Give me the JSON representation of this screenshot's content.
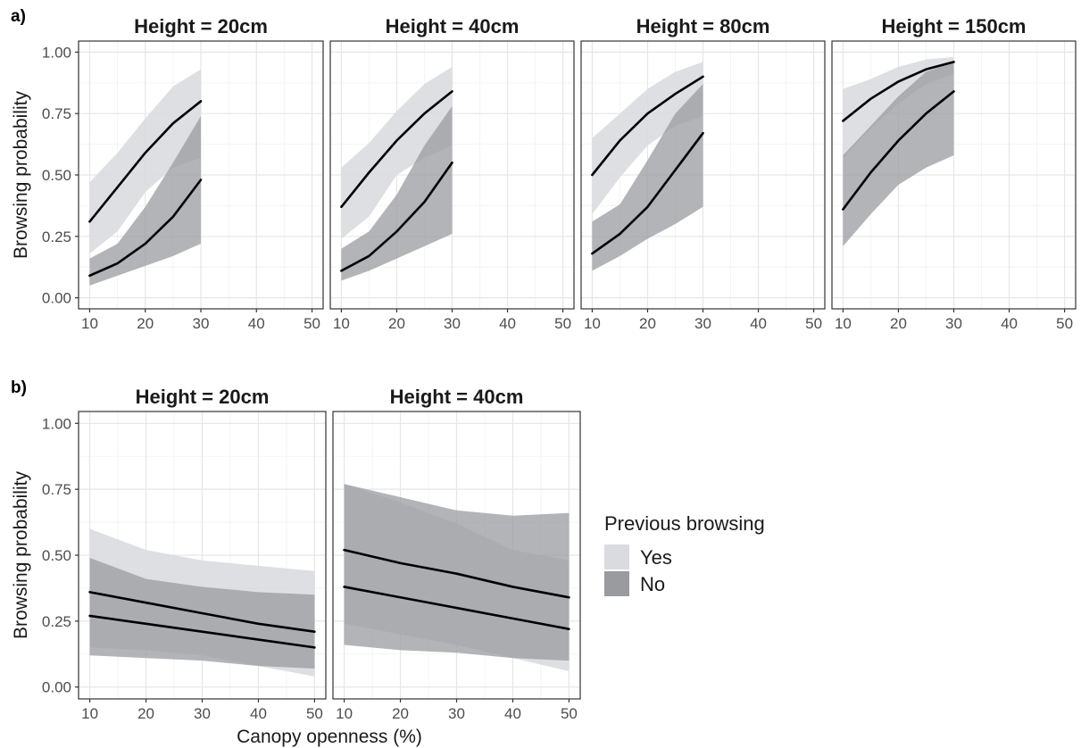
{
  "chart_data": {
    "type": "line",
    "tags": [
      "a)",
      "b)"
    ],
    "xlabel": "Canopy openness (%)",
    "ylabel": "Browsing probability",
    "xlim": [
      10,
      50
    ],
    "ylim": [
      0,
      1
    ],
    "xticks": [
      10,
      20,
      30,
      40,
      50
    ],
    "yticks": [
      0,
      0.25,
      0.5,
      0.75,
      1
    ],
    "ytick_labels": [
      "0.00",
      "0.25",
      "0.50",
      "0.75",
      "1.00"
    ],
    "grid": true,
    "legend": {
      "title": "Previous browsing",
      "placement": "right",
      "entries": [
        {
          "label": "Yes",
          "color": "#d9dbe0"
        },
        {
          "label": "No",
          "color": "#9a9b9f"
        }
      ]
    },
    "line_color": "#000000",
    "panels": [
      {
        "row": "a",
        "title": "Height = 20cm",
        "series": [
          {
            "name": "Yes",
            "x": [
              10,
              15,
              20,
              25,
              30
            ],
            "y": [
              0.31,
              0.45,
              0.59,
              0.71,
              0.8
            ],
            "lower": [
              0.18,
              0.27,
              0.43,
              0.53,
              0.57
            ],
            "upper": [
              0.47,
              0.59,
              0.73,
              0.86,
              0.93
            ]
          },
          {
            "name": "No",
            "x": [
              10,
              15,
              20,
              25,
              30
            ],
            "y": [
              0.09,
              0.14,
              0.22,
              0.33,
              0.48
            ],
            "lower": [
              0.05,
              0.09,
              0.13,
              0.17,
              0.22
            ],
            "upper": [
              0.16,
              0.22,
              0.37,
              0.55,
              0.74
            ]
          }
        ]
      },
      {
        "row": "a",
        "title": "Height = 40cm",
        "series": [
          {
            "name": "Yes",
            "x": [
              10,
              15,
              20,
              25,
              30
            ],
            "y": [
              0.37,
              0.51,
              0.64,
              0.75,
              0.84
            ],
            "lower": [
              0.24,
              0.33,
              0.5,
              0.57,
              0.62
            ],
            "upper": [
              0.53,
              0.63,
              0.76,
              0.87,
              0.94
            ]
          },
          {
            "name": "No",
            "x": [
              10,
              15,
              20,
              25,
              30
            ],
            "y": [
              0.11,
              0.17,
              0.27,
              0.39,
              0.55
            ],
            "lower": [
              0.07,
              0.11,
              0.16,
              0.21,
              0.26
            ],
            "upper": [
              0.2,
              0.27,
              0.42,
              0.62,
              0.78
            ]
          }
        ]
      },
      {
        "row": "a",
        "title": "Height = 80cm",
        "series": [
          {
            "name": "Yes",
            "x": [
              10,
              15,
              20,
              25,
              30
            ],
            "y": [
              0.5,
              0.64,
              0.75,
              0.83,
              0.9
            ],
            "lower": [
              0.34,
              0.49,
              0.62,
              0.7,
              0.74
            ],
            "upper": [
              0.65,
              0.75,
              0.85,
              0.92,
              0.96
            ]
          },
          {
            "name": "No",
            "x": [
              10,
              15,
              20,
              25,
              30
            ],
            "y": [
              0.18,
              0.26,
              0.37,
              0.52,
              0.67
            ],
            "lower": [
              0.11,
              0.17,
              0.24,
              0.3,
              0.37
            ],
            "upper": [
              0.31,
              0.38,
              0.56,
              0.75,
              0.87
            ]
          }
        ]
      },
      {
        "row": "a",
        "title": "Height = 150cm",
        "series": [
          {
            "name": "Yes",
            "x": [
              10,
              15,
              20,
              25,
              30
            ],
            "y": [
              0.72,
              0.81,
              0.88,
              0.93,
              0.96
            ],
            "lower": [
              0.57,
              0.69,
              0.79,
              0.87,
              0.91
            ],
            "upper": [
              0.85,
              0.89,
              0.94,
              0.97,
              0.98
            ]
          },
          {
            "name": "No",
            "x": [
              10,
              15,
              20,
              25,
              30
            ],
            "y": [
              0.36,
              0.51,
              0.64,
              0.75,
              0.84
            ],
            "lower": [
              0.21,
              0.34,
              0.46,
              0.53,
              0.58
            ],
            "upper": [
              0.58,
              0.7,
              0.82,
              0.92,
              0.96
            ]
          }
        ]
      },
      {
        "row": "b",
        "title": "Height = 20cm",
        "series": [
          {
            "name": "Yes",
            "x": [
              10,
              20,
              30,
              40,
              50
            ],
            "y": [
              0.27,
              0.24,
              0.21,
              0.18,
              0.15
            ],
            "lower": [
              0.15,
              0.14,
              0.12,
              0.08,
              0.04
            ],
            "upper": [
              0.6,
              0.52,
              0.48,
              0.46,
              0.44
            ]
          },
          {
            "name": "No",
            "x": [
              10,
              20,
              30,
              40,
              50
            ],
            "y": [
              0.36,
              0.32,
              0.28,
              0.24,
              0.21
            ],
            "lower": [
              0.12,
              0.11,
              0.1,
              0.08,
              0.07
            ],
            "upper": [
              0.49,
              0.41,
              0.38,
              0.36,
              0.35
            ]
          }
        ]
      },
      {
        "row": "b",
        "title": "Height = 40cm",
        "series": [
          {
            "name": "Yes",
            "x": [
              10,
              20,
              30,
              40,
              50
            ],
            "y": [
              0.38,
              0.34,
              0.3,
              0.26,
              0.22
            ],
            "lower": [
              0.24,
              0.2,
              0.16,
              0.11,
              0.06
            ],
            "upper": [
              0.77,
              0.7,
              0.62,
              0.52,
              0.48
            ]
          },
          {
            "name": "No",
            "x": [
              10,
              20,
              30,
              40,
              50
            ],
            "y": [
              0.52,
              0.47,
              0.43,
              0.38,
              0.34
            ],
            "lower": [
              0.16,
              0.14,
              0.13,
              0.11,
              0.1
            ],
            "upper": [
              0.77,
              0.72,
              0.67,
              0.65,
              0.66
            ]
          }
        ]
      }
    ]
  }
}
